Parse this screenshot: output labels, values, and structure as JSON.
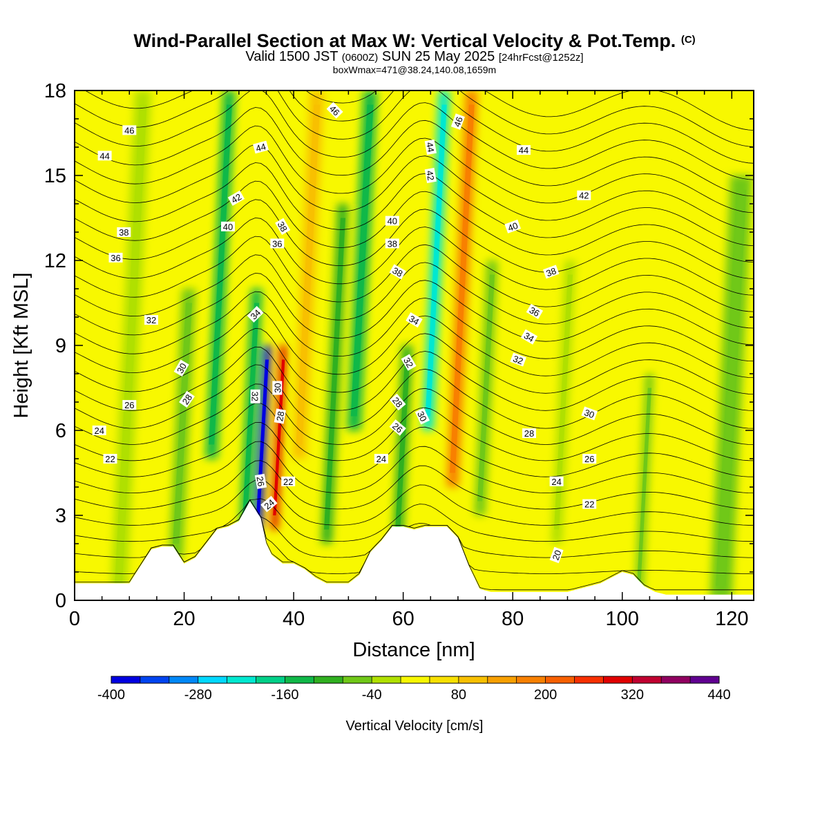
{
  "header": {
    "title": "Wind-Parallel Section at Max W: Vertical Velocity & Pot.Temp.",
    "title_mark": "(C)",
    "valid_prefix": "Valid 1500 JST",
    "valid_utc": "(0600Z)",
    "valid_date": "SUN 25 May 2025",
    "forecast": "[24hrFcst@1252z]",
    "box_info": "boxWmax=471@38.24,140.08,1659m"
  },
  "chart_data": {
    "type": "heatmap",
    "xlabel": "Distance [nm]",
    "ylabel": "Height [Kft MSL]",
    "xlim": [
      0,
      124
    ],
    "ylim": [
      0,
      18
    ],
    "x_ticks": [
      0,
      20,
      40,
      60,
      80,
      100,
      120
    ],
    "y_ticks": [
      0,
      3,
      6,
      9,
      12,
      15,
      18
    ],
    "colorbar": {
      "label": "Vertical Velocity [cm/s]",
      "min": -400,
      "max": 440,
      "step": 40,
      "tick_labels": [
        -400,
        -280,
        -160,
        -40,
        80,
        200,
        320,
        440
      ],
      "colors": [
        "#0000e0",
        "#0044f0",
        "#0088f8",
        "#00d8ff",
        "#00e8d0",
        "#00d088",
        "#10b848",
        "#30b020",
        "#70c818",
        "#b0e000",
        "#f8f800",
        "#f8e000",
        "#f8c000",
        "#f8a000",
        "#f88000",
        "#f86000",
        "#f83000",
        "#e00000",
        "#c00030",
        "#900060",
        "#600090"
      ],
      "base_color": "#f8f800"
    },
    "vertical_velocity_features": [
      {
        "x": 8,
        "h_min": 0,
        "h_max": 18,
        "width": 3,
        "value": -30
      },
      {
        "x": 18.5,
        "h_min": 1.5,
        "h_max": 11,
        "width": 2.5,
        "value": -80
      },
      {
        "x": 25,
        "h_min": 5,
        "h_max": 18,
        "width": 2.2,
        "value": -130
      },
      {
        "x": 31,
        "h_min": 2,
        "h_max": 11,
        "width": 2,
        "value": -150
      },
      {
        "x": 33.5,
        "h_min": 2.5,
        "h_max": 9,
        "width": 1.4,
        "value": -400
      },
      {
        "x": 36.5,
        "h_min": 2.5,
        "h_max": 9,
        "width": 1.2,
        "value": 290
      },
      {
        "x": 41,
        "h_min": 5,
        "h_max": 18,
        "width": 2.5,
        "value": 100
      },
      {
        "x": 46,
        "h_min": 2,
        "h_max": 14,
        "width": 2,
        "value": -90
      },
      {
        "x": 51,
        "h_min": 6,
        "h_max": 18,
        "width": 2.5,
        "value": -140
      },
      {
        "x": 59,
        "h_min": 2,
        "h_max": 9,
        "width": 2,
        "value": -110
      },
      {
        "x": 64.5,
        "h_min": 6,
        "h_max": 18,
        "width": 2,
        "value": -230
      },
      {
        "x": 69,
        "h_min": 4,
        "h_max": 18,
        "width": 2.2,
        "value": 170
      },
      {
        "x": 74,
        "h_min": 3,
        "h_max": 12,
        "width": 2,
        "value": -60
      },
      {
        "x": 88,
        "h_min": 2,
        "h_max": 12,
        "width": 2,
        "value": -40
      },
      {
        "x": 103,
        "h_min": 0,
        "h_max": 8,
        "width": 1.5,
        "value": -60
      },
      {
        "x": 118,
        "h_min": 0,
        "h_max": 15,
        "width": 4,
        "value": -50
      }
    ],
    "terrain_profile": [
      [
        0,
        0.6
      ],
      [
        8,
        0.6
      ],
      [
        10,
        0.6
      ],
      [
        12,
        1.2
      ],
      [
        14,
        1.8
      ],
      [
        16,
        1.9
      ],
      [
        18,
        1.9
      ],
      [
        20,
        1.3
      ],
      [
        22,
        1.5
      ],
      [
        24,
        2.0
      ],
      [
        26,
        2.5
      ],
      [
        28,
        2.6
      ],
      [
        30,
        2.8
      ],
      [
        32,
        3.5
      ],
      [
        34,
        2.9
      ],
      [
        35,
        2.0
      ],
      [
        36,
        1.6
      ],
      [
        38,
        1.3
      ],
      [
        40,
        1.3
      ],
      [
        42,
        1.1
      ],
      [
        44,
        0.8
      ],
      [
        46,
        0.6
      ],
      [
        48,
        0.6
      ],
      [
        50,
        0.6
      ],
      [
        52,
        0.9
      ],
      [
        54,
        1.7
      ],
      [
        56,
        2.1
      ],
      [
        58,
        2.6
      ],
      [
        60,
        2.6
      ],
      [
        62,
        2.5
      ],
      [
        64,
        2.6
      ],
      [
        66,
        2.6
      ],
      [
        68,
        2.6
      ],
      [
        70,
        2.2
      ],
      [
        72,
        1.2
      ],
      [
        74,
        0.4
      ],
      [
        76,
        0.3
      ],
      [
        80,
        0.3
      ],
      [
        90,
        0.3
      ],
      [
        96,
        0.6
      ],
      [
        100,
        1.0
      ],
      [
        102,
        0.9
      ],
      [
        104,
        0.5
      ],
      [
        106,
        0.3
      ],
      [
        108,
        0.2
      ],
      [
        124,
        0.2
      ]
    ],
    "potential_temperature": {
      "contour_interval": 1,
      "labeled_values": [
        20,
        22,
        24,
        26,
        28,
        30,
        32,
        34,
        36,
        38,
        40,
        42,
        44,
        46
      ],
      "labels": [
        {
          "text": "46",
          "x": 10,
          "y": 16.6,
          "angle": 0
        },
        {
          "text": "44",
          "x": 5.5,
          "y": 15.7,
          "angle": 0
        },
        {
          "text": "38",
          "x": 9,
          "y": 13.0,
          "angle": 0
        },
        {
          "text": "36",
          "x": 7.5,
          "y": 12.1,
          "angle": 0
        },
        {
          "text": "32",
          "x": 14,
          "y": 9.9,
          "angle": 0
        },
        {
          "text": "30",
          "x": 19.5,
          "y": 8.2,
          "angle": -60
        },
        {
          "text": "28",
          "x": 20.5,
          "y": 7.1,
          "angle": -55
        },
        {
          "text": "26",
          "x": 10,
          "y": 6.9,
          "angle": 0
        },
        {
          "text": "24",
          "x": 4.5,
          "y": 6.0,
          "angle": 0
        },
        {
          "text": "22",
          "x": 6.5,
          "y": 5.0,
          "angle": 0
        },
        {
          "text": "44",
          "x": 34,
          "y": 16.0,
          "angle": -15
        },
        {
          "text": "42",
          "x": 29.5,
          "y": 14.2,
          "angle": -30
        },
        {
          "text": "40",
          "x": 28,
          "y": 13.2,
          "angle": 0
        },
        {
          "text": "38",
          "x": 38,
          "y": 13.2,
          "angle": 60
        },
        {
          "text": "36",
          "x": 37,
          "y": 12.6,
          "angle": 0
        },
        {
          "text": "34",
          "x": 33,
          "y": 10.1,
          "angle": -45
        },
        {
          "text": "32",
          "x": 33,
          "y": 7.2,
          "angle": 90
        },
        {
          "text": "30",
          "x": 37,
          "y": 7.5,
          "angle": -90
        },
        {
          "text": "28",
          "x": 37.5,
          "y": 6.5,
          "angle": -80
        },
        {
          "text": "26",
          "x": 34,
          "y": 4.2,
          "angle": 80
        },
        {
          "text": "24",
          "x": 35.5,
          "y": 3.4,
          "angle": -40
        },
        {
          "text": "22",
          "x": 39,
          "y": 4.2,
          "angle": 0
        },
        {
          "text": "46",
          "x": 47.5,
          "y": 17.3,
          "angle": 45
        },
        {
          "text": "40",
          "x": 58,
          "y": 13.4,
          "angle": 0
        },
        {
          "text": "38",
          "x": 58,
          "y": 12.6,
          "angle": 0
        },
        {
          "text": "38",
          "x": 59,
          "y": 11.6,
          "angle": 30
        },
        {
          "text": "34",
          "x": 62,
          "y": 9.9,
          "angle": 30
        },
        {
          "text": "32",
          "x": 61,
          "y": 8.4,
          "angle": 60
        },
        {
          "text": "28",
          "x": 59,
          "y": 7.0,
          "angle": 50
        },
        {
          "text": "30",
          "x": 63.5,
          "y": 6.5,
          "angle": 65
        },
        {
          "text": "26",
          "x": 59,
          "y": 6.1,
          "angle": 40
        },
        {
          "text": "24",
          "x": 56,
          "y": 5.0,
          "angle": 0
        },
        {
          "text": "46",
          "x": 70,
          "y": 16.9,
          "angle": -70
        },
        {
          "text": "44",
          "x": 65,
          "y": 16.0,
          "angle": 80
        },
        {
          "text": "42",
          "x": 65,
          "y": 15.0,
          "angle": 80
        },
        {
          "text": "44",
          "x": 82,
          "y": 15.9,
          "angle": 0
        },
        {
          "text": "42",
          "x": 93,
          "y": 14.3,
          "angle": 0
        },
        {
          "text": "40",
          "x": 80,
          "y": 13.2,
          "angle": -20
        },
        {
          "text": "38",
          "x": 87,
          "y": 11.6,
          "angle": -20
        },
        {
          "text": "36",
          "x": 84,
          "y": 10.2,
          "angle": 30
        },
        {
          "text": "34",
          "x": 83,
          "y": 9.3,
          "angle": 30
        },
        {
          "text": "32",
          "x": 81,
          "y": 8.5,
          "angle": 20
        },
        {
          "text": "30",
          "x": 94,
          "y": 6.6,
          "angle": 20
        },
        {
          "text": "28",
          "x": 83,
          "y": 5.9,
          "angle": 0
        },
        {
          "text": "26",
          "x": 94,
          "y": 5.0,
          "angle": 0
        },
        {
          "text": "24",
          "x": 88,
          "y": 4.2,
          "angle": 0
        },
        {
          "text": "22",
          "x": 94,
          "y": 3.4,
          "angle": 0
        },
        {
          "text": "20",
          "x": 88,
          "y": 1.6,
          "angle": -70
        }
      ]
    }
  }
}
